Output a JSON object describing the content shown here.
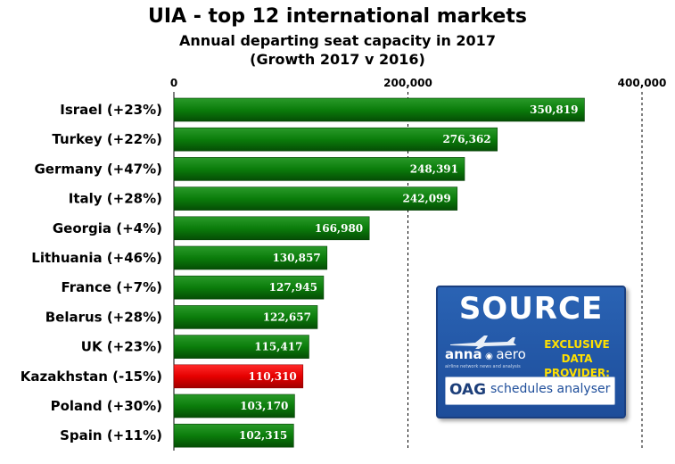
{
  "chart_data": {
    "type": "bar",
    "orientation": "horizontal",
    "title": "UIA - top 12 international markets",
    "subtitle": [
      "Annual departing seat capacity in 2017",
      "(Growth 2017 v 2016)"
    ],
    "categories": [
      "Israel (+23%)",
      "Turkey (+22%)",
      "Germany (+47%)",
      "Italy (+28%)",
      "Georgia (+4%)",
      "Lithuania (+46%)",
      "France (+7%)",
      "Belarus (+28%)",
      "UK (+23%)",
      "Kazakhstan (-15%)",
      "Poland (+30%)",
      "Spain (+11%)"
    ],
    "values": [
      350819,
      276362,
      248391,
      242099,
      166980,
      130857,
      127945,
      122657,
      115417,
      110310,
      103170,
      102315
    ],
    "value_labels": [
      "350,819",
      "276,362",
      "248,391",
      "242,099",
      "166,980",
      "130,857",
      "127,945",
      "122,657",
      "115,417",
      "110,310",
      "103,170",
      "102,315"
    ],
    "xlim": [
      0,
      400000
    ],
    "x_ticks": [
      0,
      200000,
      400000
    ],
    "x_tick_labels": [
      "0",
      "200,000",
      "400,000"
    ],
    "axis_position": "top",
    "grid": "vertical dashed",
    "colors": {
      "bar": "#0a7a0a",
      "highlight": "#e00000"
    },
    "highlight_index": 9
  },
  "source_box": {
    "title": "SOURCE",
    "anna_logo": "anna",
    "anna_logo_suffix": "aero",
    "anna_tagline": "airline network news and analysis",
    "exclusive_line1": "EXCLUSIVE",
    "exclusive_line2": "DATA PROVIDER:",
    "oag_logo": "OAG",
    "oag_schedules": "schedules analyser"
  }
}
